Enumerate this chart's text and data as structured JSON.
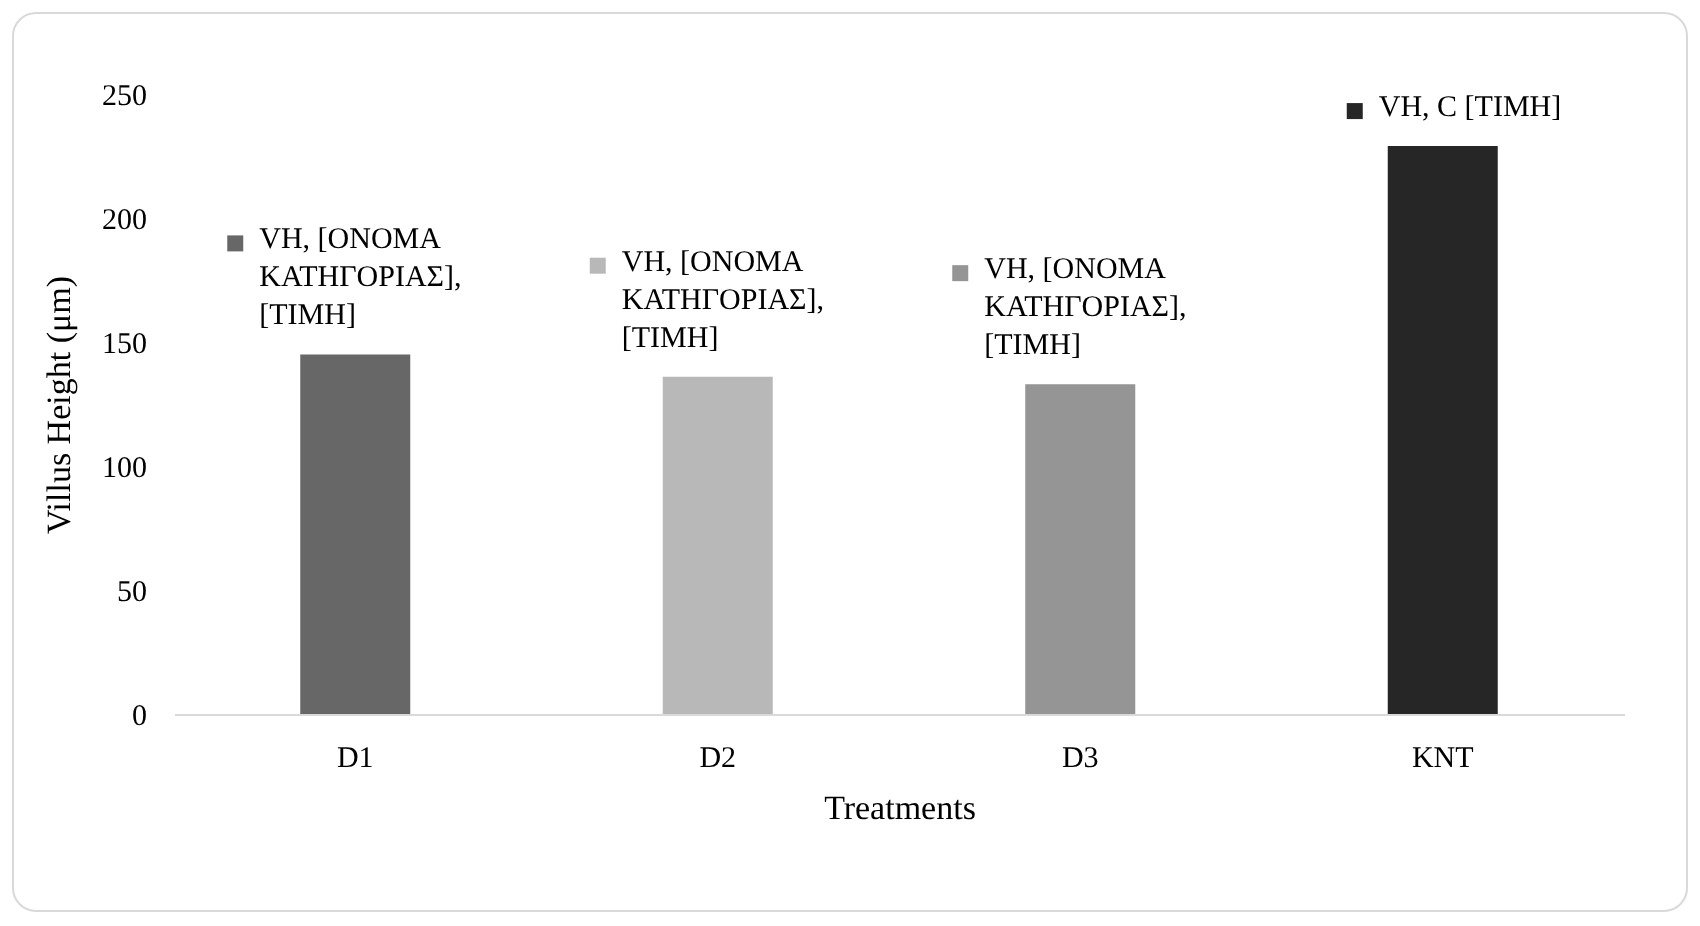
{
  "chart_data": {
    "type": "bar",
    "xlabel": "Treatments",
    "ylabel": "Villus Height (μm)",
    "categories": [
      "D1",
      "D2",
      "D3",
      "KNT"
    ],
    "values": [
      145,
      136,
      133,
      229
    ],
    "colors": [
      "#676767",
      "#b8b8b8",
      "#959595",
      "#262626"
    ],
    "ylim": [
      0,
      250
    ],
    "yticks": [
      0,
      50,
      100,
      150,
      200,
      250
    ],
    "grid": false,
    "annotations": [
      {
        "text": "VH, [ΟΝΟΜΑ ΚΑΤΗΓΟΡΙΑΣ], [ΤΙΜΗ]",
        "x": "D1",
        "y": 145
      },
      {
        "text": "VH, [ΟΝΟΜΑ ΚΑΤΗΓΟΡΙΑΣ], [ΤΙΜΗ]",
        "x": "D2",
        "y": 136
      },
      {
        "text": "VH, [ΟΝΟΜΑ ΚΑΤΗΓΟΡΙΑΣ], [ΤΙΜΗ]",
        "x": "D3",
        "y": 133
      },
      {
        "text": "VH, C [ΤΙΜΗ]",
        "x": "KNT",
        "y": 229
      }
    ]
  }
}
